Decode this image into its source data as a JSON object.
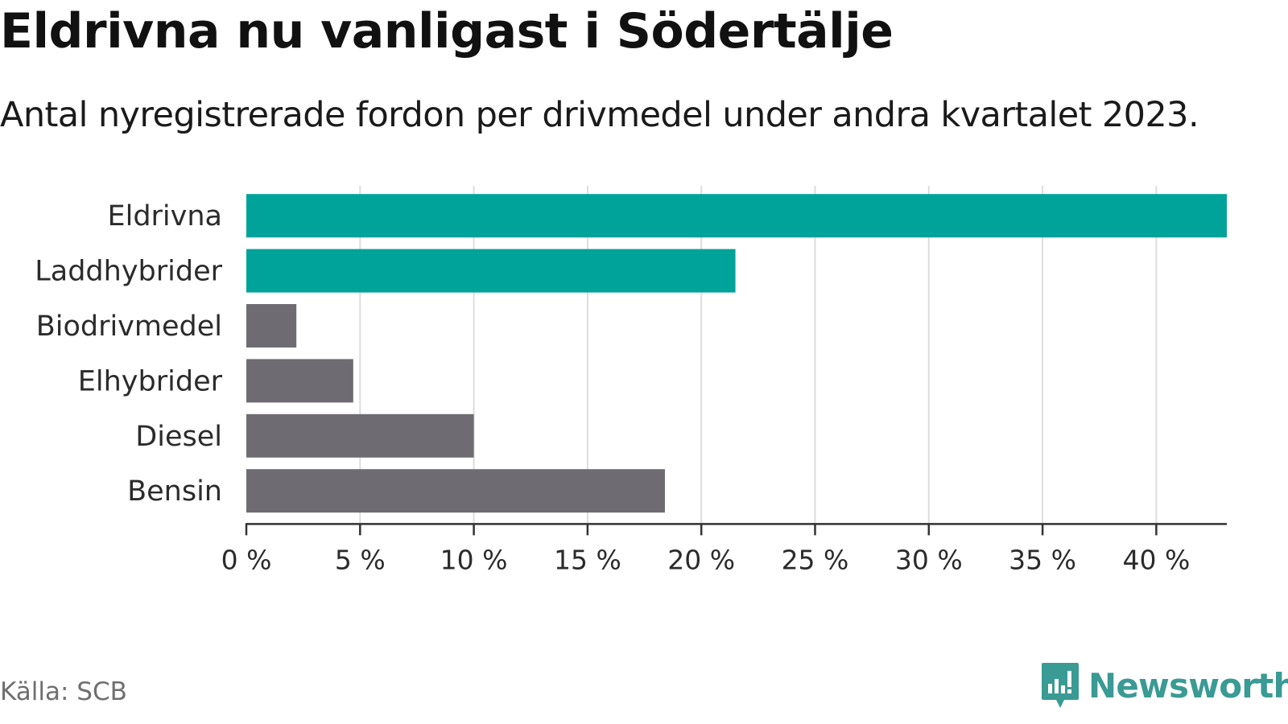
{
  "title": "Eldrivna nu vanligast i Södertälje",
  "subtitle": "Antal nyregistrerade fordon per drivmedel under andra kvartalet 2023.",
  "source": "Källa: SCB",
  "brand": {
    "name": "Newsworthy",
    "icon": "newsworthy-logo-icon",
    "color": "#3a9a94"
  },
  "colors": {
    "highlight": "#00a39a",
    "default": "#6e6c72",
    "grid": "#dddddd",
    "axis": "#333333"
  },
  "chart_data": {
    "type": "bar",
    "orientation": "horizontal",
    "title": "Eldrivna nu vanligast i Södertälje",
    "subtitle": "Antal nyregistrerade fordon per drivmedel under andra kvartalet 2023.",
    "categories": [
      "Eldrivna",
      "Laddhybrider",
      "Biodrivmedel",
      "Elhybrider",
      "Diesel",
      "Bensin"
    ],
    "values": [
      43.1,
      21.5,
      2.2,
      4.7,
      10.0,
      18.4
    ],
    "highlighted": [
      true,
      true,
      false,
      false,
      false,
      false
    ],
    "xlabel": "",
    "ylabel": "",
    "xlim": [
      0,
      43.1
    ],
    "ticks": [
      0,
      5,
      10,
      15,
      20,
      25,
      30,
      35,
      40
    ],
    "tick_labels": [
      "0 %",
      "5 %",
      "10 %",
      "15 %",
      "20 %",
      "25 %",
      "30 %",
      "35 %",
      "40 %"
    ],
    "grid": true,
    "legend": "none"
  }
}
